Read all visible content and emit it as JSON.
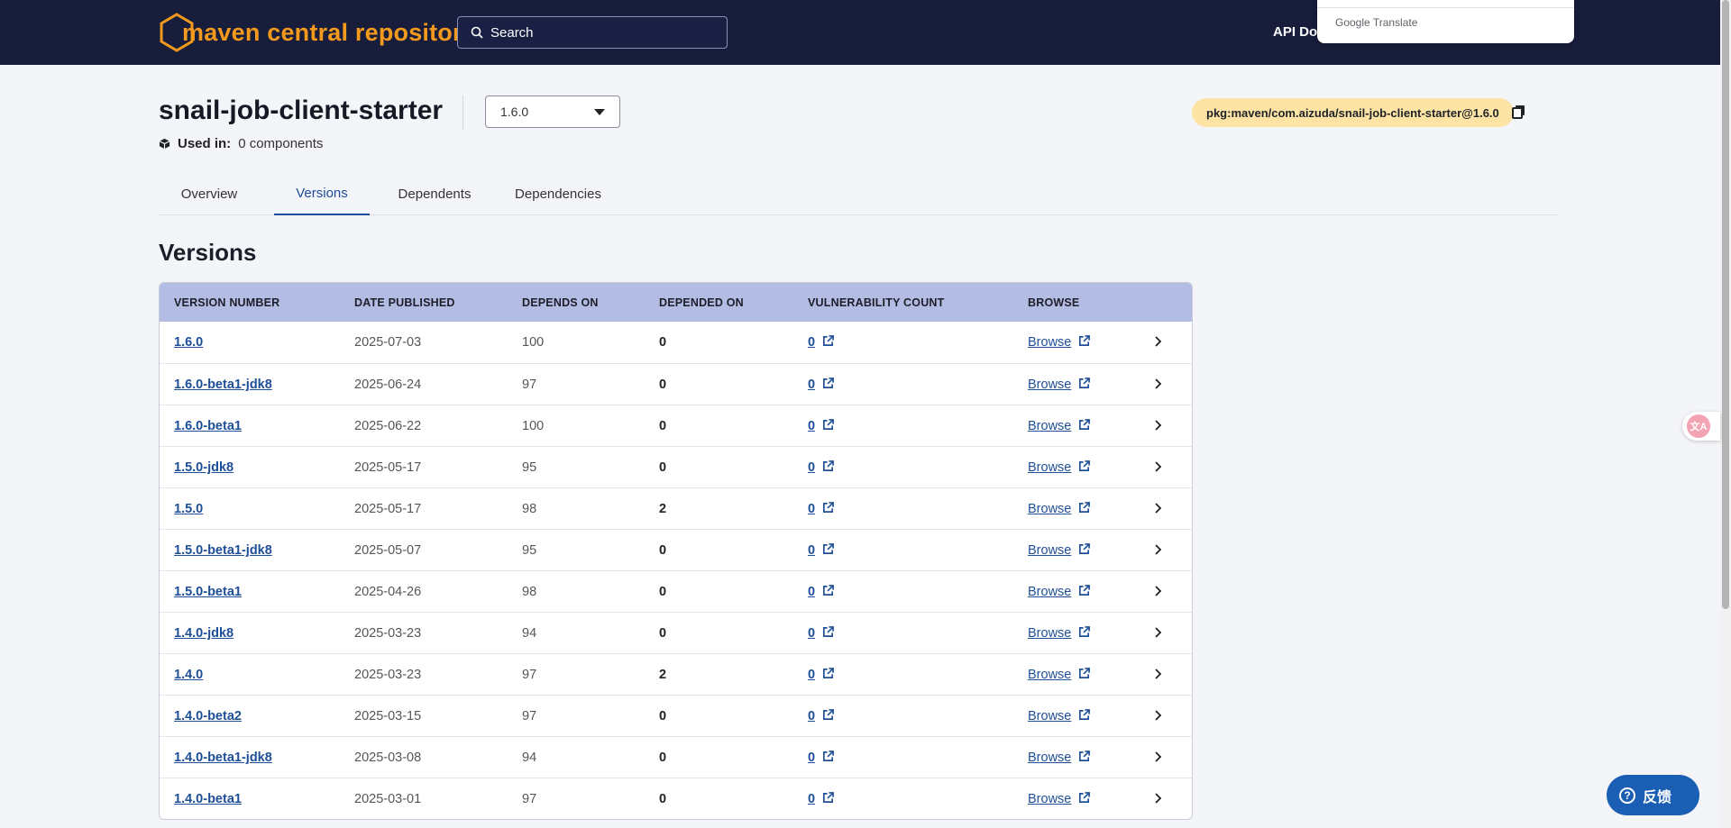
{
  "header": {
    "logo_text": "maven central repository",
    "search_placeholder": "Search",
    "api_docs": "API Doc",
    "google_translate": "Google Translate"
  },
  "package": {
    "title": "snail-job-client-starter",
    "version_selected": "1.6.0",
    "used_in_label": "Used in:",
    "used_in_value": "0 components",
    "purl": "pkg:maven/com.aizuda/snail-job-client-starter@1.6.0"
  },
  "tabs": [
    {
      "label": "Overview",
      "active": false
    },
    {
      "label": "Versions",
      "active": true
    },
    {
      "label": "Dependents",
      "active": false
    },
    {
      "label": "Dependencies",
      "active": false
    }
  ],
  "section_title": "Versions",
  "table": {
    "columns": [
      "VERSION NUMBER",
      "DATE PUBLISHED",
      "DEPENDS ON",
      "DEPENDED ON",
      "VULNERABILITY COUNT",
      "BROWSE"
    ],
    "rows": [
      {
        "version": "1.6.0",
        "date": "2025-07-03",
        "depends_on": "100",
        "depended_on": "0",
        "vuln": "0",
        "browse": "Browse"
      },
      {
        "version": "1.6.0-beta1-jdk8",
        "date": "2025-06-24",
        "depends_on": "97",
        "depended_on": "0",
        "vuln": "0",
        "browse": "Browse"
      },
      {
        "version": "1.6.0-beta1",
        "date": "2025-06-22",
        "depends_on": "100",
        "depended_on": "0",
        "vuln": "0",
        "browse": "Browse"
      },
      {
        "version": "1.5.0-jdk8",
        "date": "2025-05-17",
        "depends_on": "95",
        "depended_on": "0",
        "vuln": "0",
        "browse": "Browse"
      },
      {
        "version": "1.5.0",
        "date": "2025-05-17",
        "depends_on": "98",
        "depended_on": "2",
        "vuln": "0",
        "browse": "Browse"
      },
      {
        "version": "1.5.0-beta1-jdk8",
        "date": "2025-05-07",
        "depends_on": "95",
        "depended_on": "0",
        "vuln": "0",
        "browse": "Browse"
      },
      {
        "version": "1.5.0-beta1",
        "date": "2025-04-26",
        "depends_on": "98",
        "depended_on": "0",
        "vuln": "0",
        "browse": "Browse"
      },
      {
        "version": "1.4.0-jdk8",
        "date": "2025-03-23",
        "depends_on": "94",
        "depended_on": "0",
        "vuln": "0",
        "browse": "Browse"
      },
      {
        "version": "1.4.0",
        "date": "2025-03-23",
        "depends_on": "97",
        "depended_on": "2",
        "vuln": "0",
        "browse": "Browse"
      },
      {
        "version": "1.4.0-beta2",
        "date": "2025-03-15",
        "depends_on": "97",
        "depended_on": "0",
        "vuln": "0",
        "browse": "Browse"
      },
      {
        "version": "1.4.0-beta1-jdk8",
        "date": "2025-03-08",
        "depends_on": "94",
        "depended_on": "0",
        "vuln": "0",
        "browse": "Browse"
      },
      {
        "version": "1.4.0-beta1",
        "date": "2025-03-01",
        "depends_on": "97",
        "depended_on": "0",
        "vuln": "0",
        "browse": "Browse"
      }
    ]
  },
  "feedback_label": "反馈",
  "colors": {
    "header_bg": "#171d3a",
    "brand_orange": "#f39a1e",
    "link_blue": "#1f4f98",
    "table_header_bg": "#b3bce3",
    "purl_badge_bg": "#fde3a4",
    "feedback_bg": "#1a5fb4"
  },
  "icons": [
    "search-icon",
    "caret-down-icon",
    "package-icon",
    "copy-icon",
    "external-link-icon",
    "chevron-right-icon",
    "translate-icon",
    "help-icon"
  ]
}
